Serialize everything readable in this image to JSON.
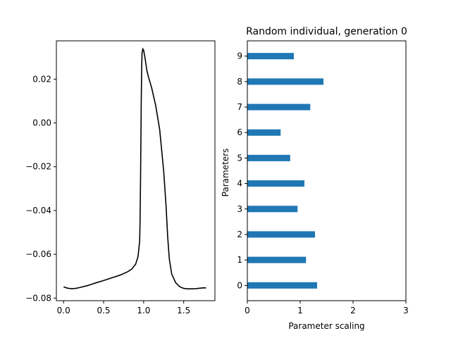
{
  "chart_data": [
    {
      "type": "line",
      "title": "",
      "xlabel": "",
      "ylabel": "",
      "xlim": [
        -0.09,
        1.89
      ],
      "ylim": [
        -0.0812,
        0.0375
      ],
      "xticks": [
        "0.0",
        "0.5",
        "1.0",
        "1.5"
      ],
      "yticks": [
        "−0.08",
        "−0.06",
        "−0.04",
        "−0.02",
        "0.00",
        "0.02"
      ],
      "line_color": "#000000",
      "grid": false,
      "series": [
        {
          "x": [
            0.0,
            0.05,
            0.1,
            0.15,
            0.2,
            0.3,
            0.4,
            0.5,
            0.6,
            0.7,
            0.8,
            0.85,
            0.9,
            0.93,
            0.95,
            0.955,
            0.96,
            0.965,
            0.97,
            0.975,
            0.98,
            0.99,
            1.0,
            1.02,
            1.04,
            1.06,
            1.08,
            1.1,
            1.15,
            1.2,
            1.25,
            1.28,
            1.3,
            1.32,
            1.35,
            1.4,
            1.45,
            1.5,
            1.55,
            1.6,
            1.65,
            1.7,
            1.75,
            1.78
          ],
          "y": [
            -0.0749,
            -0.0755,
            -0.0757,
            -0.0756,
            -0.0752,
            -0.0743,
            -0.0731,
            -0.072,
            -0.0708,
            -0.0696,
            -0.068,
            -0.0668,
            -0.0645,
            -0.061,
            -0.054,
            -0.045,
            -0.03,
            -0.01,
            0.01,
            0.025,
            0.032,
            0.0338,
            0.0332,
            0.029,
            0.024,
            0.021,
            0.0185,
            0.016,
            0.008,
            -0.003,
            -0.022,
            -0.038,
            -0.052,
            -0.062,
            -0.069,
            -0.073,
            -0.0748,
            -0.0756,
            -0.0758,
            -0.0758,
            -0.0757,
            -0.0755,
            -0.0753,
            -0.0754
          ]
        }
      ]
    },
    {
      "type": "bar",
      "orientation": "horizontal",
      "title": "Random individual, generation 0",
      "xlabel": "Parameter scaling",
      "ylabel": "Parameters",
      "xlim": [
        0,
        3
      ],
      "xticks": [
        "0",
        "1",
        "2",
        "3"
      ],
      "categories": [
        "0",
        "1",
        "2",
        "3",
        "4",
        "5",
        "6",
        "7",
        "8",
        "9"
      ],
      "values": [
        1.32,
        1.11,
        1.28,
        0.95,
        1.08,
        0.81,
        0.63,
        1.19,
        1.44,
        0.88
      ],
      "bar_color": "#1f77b4",
      "grid": false
    }
  ]
}
